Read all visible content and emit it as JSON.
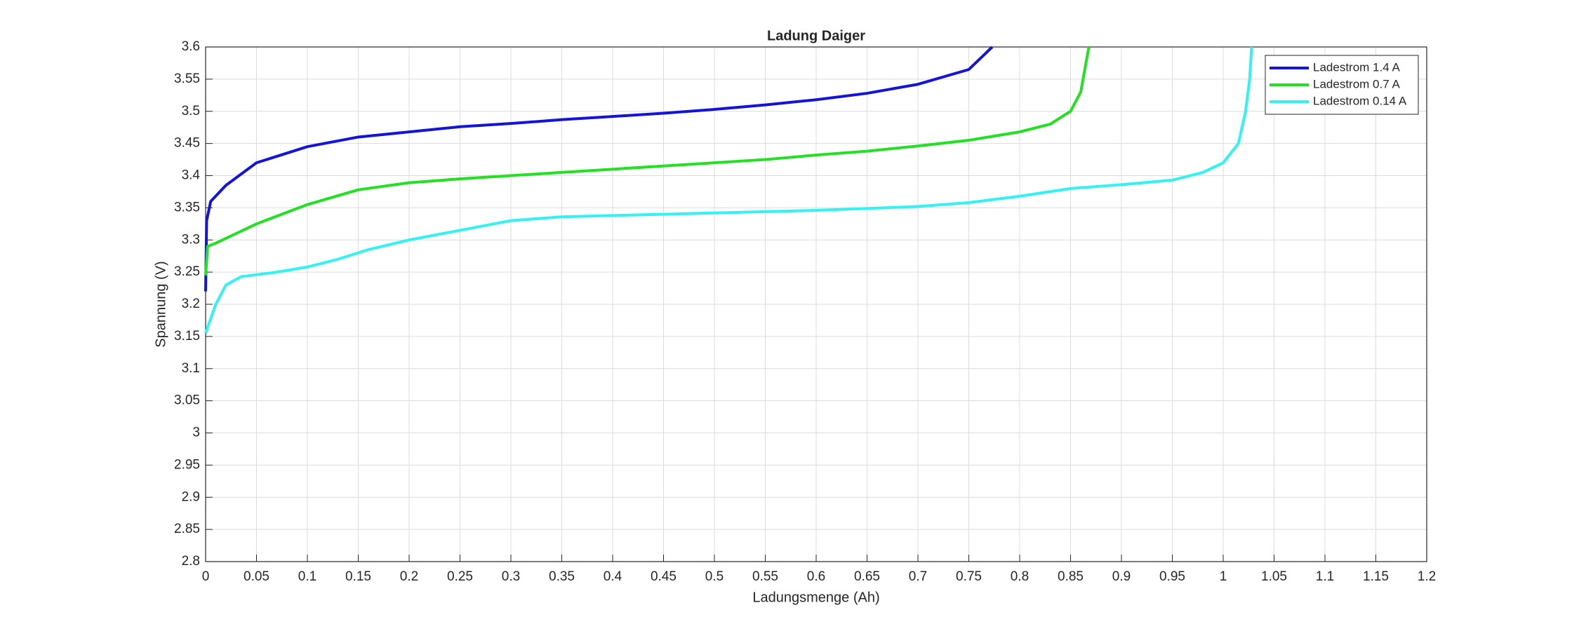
{
  "chart_data": {
    "type": "line",
    "title": "Ladung Daiger",
    "x_label": "Ladungsmenge (Ah)",
    "y_label": "Spannung (V)",
    "xlim": [
      0,
      1.2
    ],
    "ylim": [
      2.8,
      3.6
    ],
    "xticks": [
      0,
      0.05,
      0.1,
      0.15,
      0.2,
      0.25,
      0.3,
      0.35,
      0.4,
      0.45,
      0.5,
      0.55,
      0.6,
      0.65,
      0.7,
      0.75,
      0.8,
      0.85,
      0.9,
      0.95,
      1,
      1.05,
      1.1,
      1.15,
      1.2
    ],
    "yticks": [
      2.8,
      2.85,
      2.9,
      2.95,
      3,
      3.05,
      3.1,
      3.15,
      3.2,
      3.25,
      3.3,
      3.35,
      3.4,
      3.45,
      3.5,
      3.55,
      3.6
    ],
    "grid": true,
    "legend": "northeast",
    "series": [
      {
        "name": "Ladestrom 1.4 A",
        "color": "#1414d8",
        "x": [
          0,
          0.001,
          0.005,
          0.02,
          0.05,
          0.1,
          0.15,
          0.2,
          0.25,
          0.3,
          0.35,
          0.4,
          0.45,
          0.5,
          0.55,
          0.6,
          0.65,
          0.7,
          0.75,
          0.773
        ],
        "values": [
          3.22,
          3.33,
          3.36,
          3.385,
          3.42,
          3.445,
          3.46,
          3.468,
          3.476,
          3.481,
          3.487,
          3.492,
          3.497,
          3.503,
          3.51,
          3.518,
          3.528,
          3.542,
          3.565,
          3.6
        ]
      },
      {
        "name": "Ladestrom 0.7 A",
        "color": "#22e022",
        "x": [
          0,
          0.002,
          0.01,
          0.05,
          0.1,
          0.15,
          0.2,
          0.25,
          0.3,
          0.35,
          0.4,
          0.45,
          0.5,
          0.55,
          0.6,
          0.65,
          0.7,
          0.75,
          0.8,
          0.83,
          0.85,
          0.86,
          0.868
        ],
        "values": [
          3.245,
          3.29,
          3.295,
          3.325,
          3.355,
          3.378,
          3.389,
          3.395,
          3.4,
          3.405,
          3.41,
          3.415,
          3.42,
          3.425,
          3.432,
          3.438,
          3.446,
          3.455,
          3.468,
          3.48,
          3.5,
          3.53,
          3.6
        ]
      },
      {
        "name": "Ladestrom 0.14 A",
        "color": "#33f2f2",
        "x": [
          0,
          0.01,
          0.02,
          0.035,
          0.07,
          0.1,
          0.13,
          0.16,
          0.2,
          0.25,
          0.3,
          0.35,
          0.4,
          0.5,
          0.6,
          0.7,
          0.75,
          0.8,
          0.85,
          0.9,
          0.95,
          0.98,
          1,
          1.015,
          1.022,
          1.026,
          1.028
        ],
        "values": [
          3.155,
          3.2,
          3.23,
          3.243,
          3.25,
          3.258,
          3.27,
          3.285,
          3.3,
          3.315,
          3.33,
          3.336,
          3.338,
          3.342,
          3.346,
          3.352,
          3.358,
          3.368,
          3.38,
          3.386,
          3.393,
          3.405,
          3.42,
          3.45,
          3.5,
          3.55,
          3.6
        ]
      }
    ]
  }
}
